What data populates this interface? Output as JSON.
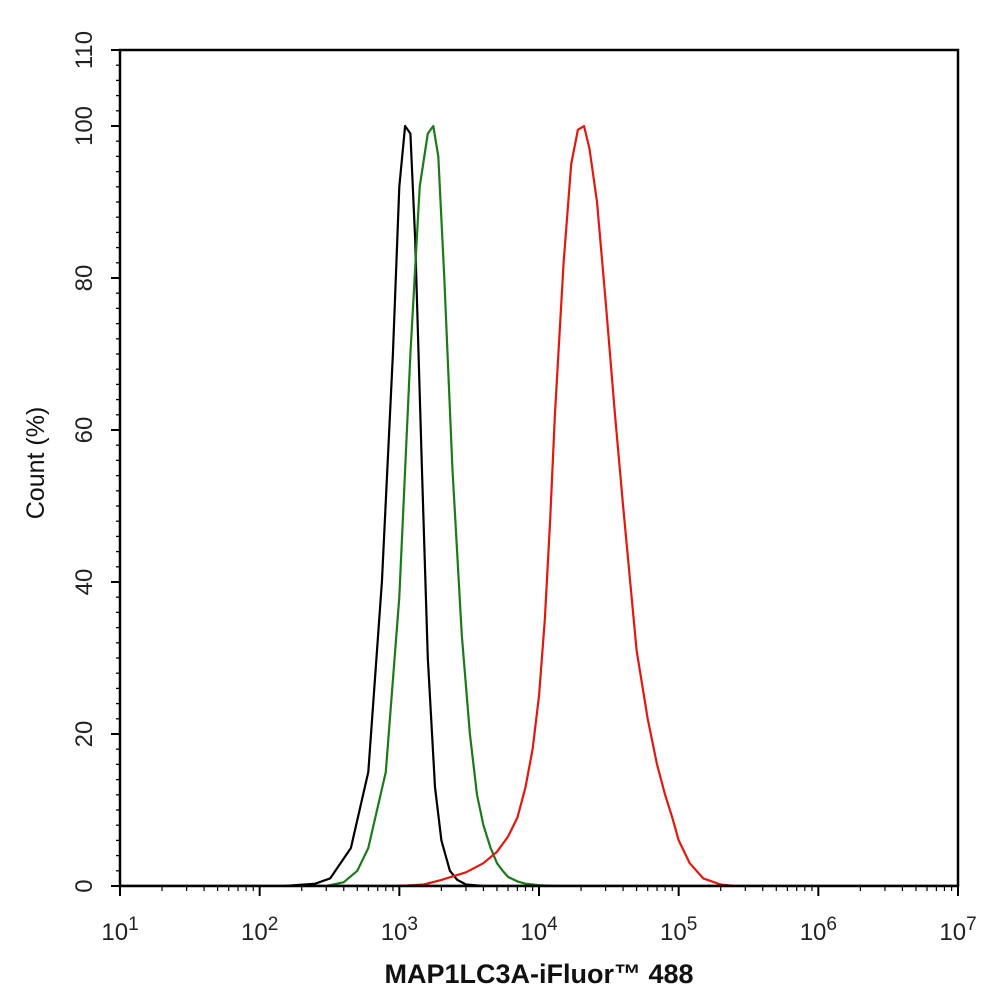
{
  "chart_data": {
    "type": "line",
    "xlabel": "MAP1LC3A-iFluor™ 488",
    "ylabel": "Count  (%)",
    "x_scale": "log",
    "xlim": [
      10,
      10000000
    ],
    "ylim": [
      0,
      110
    ],
    "x_tick_labels": [
      {
        "base": "10",
        "exp": "1"
      },
      {
        "base": "10",
        "exp": "2"
      },
      {
        "base": "10",
        "exp": "3"
      },
      {
        "base": "10",
        "exp": "4"
      },
      {
        "base": "10",
        "exp": "5"
      },
      {
        "base": "10",
        "exp": "6"
      },
      {
        "base": "10",
        "exp": "7"
      }
    ],
    "y_ticks": [
      "0",
      "20",
      "40",
      "60",
      "80",
      "100",
      "110"
    ],
    "grid": false,
    "series": [
      {
        "color": "#000000",
        "x": [
          150,
          250,
          320,
          450,
          600,
          750,
          900,
          1000,
          1100,
          1200,
          1300,
          1450,
          1600,
          1800,
          2000,
          2300,
          2600,
          3000,
          4000
        ],
        "y": [
          0,
          0.3,
          1,
          5,
          15,
          40,
          70,
          92,
          100,
          99,
          85,
          55,
          30,
          13,
          6,
          2,
          0.8,
          0.2,
          0
        ]
      },
      {
        "color": "#1a7a1a",
        "x": [
          300,
          400,
          500,
          600,
          800,
          1000,
          1200,
          1400,
          1600,
          1750,
          1900,
          2100,
          2400,
          2800,
          3200,
          3600,
          4000,
          4500,
          5000,
          5500,
          6000,
          7000,
          8000,
          10000,
          13000
        ],
        "y": [
          0,
          0.5,
          2,
          5,
          15,
          38,
          70,
          92,
          99,
          100,
          96,
          80,
          55,
          33,
          20,
          12,
          8,
          5,
          3,
          2,
          1.2,
          0.6,
          0.3,
          0.1,
          0
        ]
      },
      {
        "color": "#e3170d",
        "x": [
          1000,
          1500,
          2000,
          3000,
          4000,
          5000,
          6000,
          7000,
          8000,
          9000,
          10000,
          11000,
          12000,
          13000,
          15000,
          17000,
          19000,
          21000,
          23000,
          26000,
          30000,
          35000,
          40000,
          45000,
          50000,
          60000,
          70000,
          80000,
          90000,
          100000,
          120000,
          150000,
          200000,
          250000
        ],
        "y": [
          0,
          0.2,
          0.8,
          1.8,
          3,
          4.5,
          6.5,
          9,
          13,
          18,
          25,
          35,
          48,
          62,
          82,
          95,
          99.5,
          100,
          97,
          90,
          77,
          62,
          50,
          40,
          31,
          22,
          16,
          12,
          9,
          6,
          3,
          1,
          0.2,
          0
        ]
      }
    ]
  }
}
